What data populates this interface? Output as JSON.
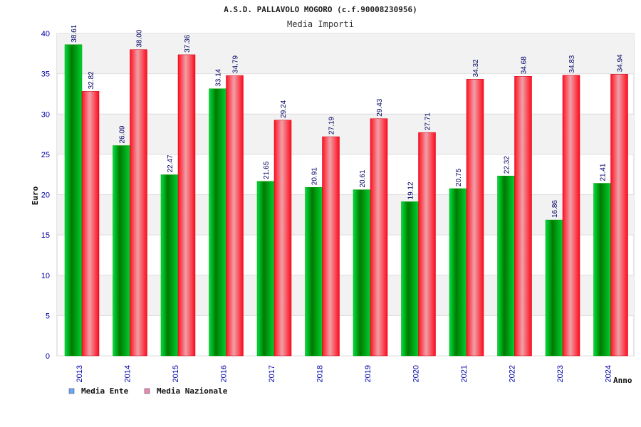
{
  "chart_data": {
    "type": "bar",
    "title": "A.S.D. PALLAVOLO MOGORO (c.f.90008230956)",
    "subtitle": "Media Importi",
    "xlabel": "Anno",
    "ylabel": "Euro",
    "ylim": [
      0,
      40
    ],
    "yticks": [
      0,
      5,
      10,
      15,
      20,
      25,
      30,
      35,
      40
    ],
    "categories": [
      "2013",
      "2014",
      "2015",
      "2016",
      "2017",
      "2018",
      "2019",
      "2020",
      "2021",
      "2022",
      "2023",
      "2024"
    ],
    "series": [
      {
        "name": "Media Ente",
        "color": "#00a000",
        "legend_color": "#6aa9ee",
        "values": [
          38.61,
          26.09,
          22.47,
          33.14,
          21.65,
          20.91,
          20.61,
          19.12,
          20.75,
          22.32,
          16.86,
          21.41
        ]
      },
      {
        "name": "Media Nazionale",
        "color": "#e8001a",
        "legend_color": "#e88aa8",
        "values": [
          32.82,
          38.0,
          37.36,
          34.79,
          29.24,
          27.19,
          29.43,
          27.71,
          34.32,
          34.68,
          34.83,
          34.94
        ]
      }
    ],
    "grid": true,
    "legend": "bottom-left"
  }
}
